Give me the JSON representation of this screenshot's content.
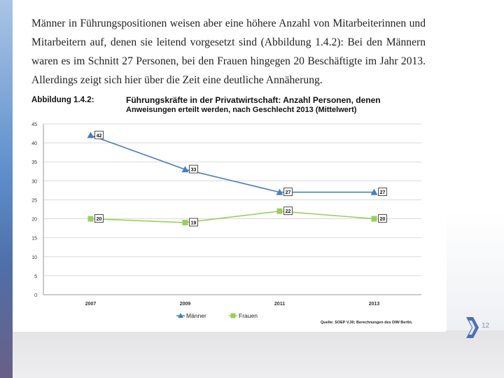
{
  "slide": {
    "paragraph": "Männer in Führungspositionen weisen aber eine höhere Anzahl von Mitarbeiterinnen und Mitarbeitern auf, denen sie leitend vorgesetzt sind (Abbildung 1.4.2): Bei den Männern waren es im Schnitt 27 Personen, bei den Frauen hingegen 20 Beschäftigte im Jahr 2013. Allerdings zeigt sich hier über die Zeit eine deutliche Annäherung.",
    "figure_label": "Abbildung 1.4.2:",
    "page_number": "12"
  },
  "chart_data": {
    "type": "line",
    "title": "Führungskräfte in der Privatwirtschaft: Anzahl Personen, denen",
    "subtitle": "Anweisungen erteilt werden, nach Geschlecht 2013 (Mittelwert)",
    "x": [
      "2007",
      "2009",
      "2011",
      "2013"
    ],
    "series": [
      {
        "name": "Männer",
        "values": [
          42,
          33,
          27,
          27
        ],
        "color": "#4a7ebb",
        "marker": "triangle"
      },
      {
        "name": "Frauen",
        "values": [
          20,
          19,
          22,
          20
        ],
        "color": "#9bcf5c",
        "marker": "square"
      }
    ],
    "y_ticks": [
      0,
      5,
      10,
      15,
      20,
      25,
      30,
      35,
      40,
      45
    ],
    "ylim": [
      0,
      45
    ],
    "grid": true,
    "legend": "bottom",
    "source": "Quelle: SOEP V.30; Berechnungen des DIW Berlin."
  }
}
